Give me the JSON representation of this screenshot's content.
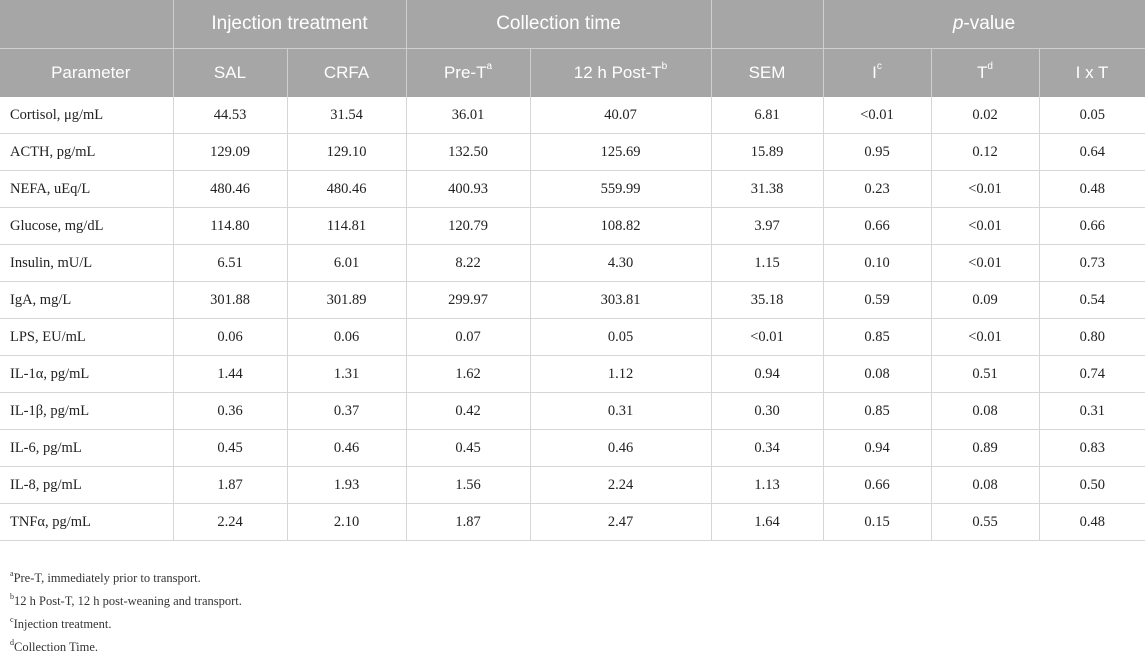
{
  "header": {
    "group_injection": "Injection treatment",
    "group_collection": "Collection time",
    "group_p_italic": "p",
    "group_p_rest": "-value",
    "col_parameter": "Parameter",
    "col_sal": "SAL",
    "col_crfa": "CRFA",
    "col_pre": "Pre-T",
    "col_pre_sup": "a",
    "col_post": "12 h Post-T",
    "col_post_sup": "b",
    "col_sem": "SEM",
    "col_i": "I",
    "col_i_sup": "c",
    "col_t": "T",
    "col_t_sup": "d",
    "col_ixt": "I x T"
  },
  "rows": [
    [
      "Cortisol, μg/mL",
      "44.53",
      "31.54",
      "36.01",
      "40.07",
      "6.81",
      "<0.01",
      "0.02",
      "0.05"
    ],
    [
      "ACTH, pg/mL",
      "129.09",
      "129.10",
      "132.50",
      "125.69",
      "15.89",
      "0.95",
      "0.12",
      "0.64"
    ],
    [
      "NEFA, uEq/L",
      "480.46",
      "480.46",
      "400.93",
      "559.99",
      "31.38",
      "0.23",
      "<0.01",
      "0.48"
    ],
    [
      "Glucose, mg/dL",
      "114.80",
      "114.81",
      "120.79",
      "108.82",
      "3.97",
      "0.66",
      "<0.01",
      "0.66"
    ],
    [
      "Insulin, mU/L",
      "6.51",
      "6.01",
      "8.22",
      "4.30",
      "1.15",
      "0.10",
      "<0.01",
      "0.73"
    ],
    [
      "IgA, mg/L",
      "301.88",
      "301.89",
      "299.97",
      "303.81",
      "35.18",
      "0.59",
      "0.09",
      "0.54"
    ],
    [
      "LPS, EU/mL",
      "0.06",
      "0.06",
      "0.07",
      "0.05",
      "<0.01",
      "0.85",
      "<0.01",
      "0.80"
    ],
    [
      "IL-1α, pg/mL",
      "1.44",
      "1.31",
      "1.62",
      "1.12",
      "0.94",
      "0.08",
      "0.51",
      "0.74"
    ],
    [
      "IL-1β, pg/mL",
      "0.36",
      "0.37",
      "0.42",
      "0.31",
      "0.30",
      "0.85",
      "0.08",
      "0.31"
    ],
    [
      "IL-6, pg/mL",
      "0.45",
      "0.46",
      "0.45",
      "0.46",
      "0.34",
      "0.94",
      "0.89",
      "0.83"
    ],
    [
      "IL-8, pg/mL",
      "1.87",
      "1.93",
      "1.56",
      "2.24",
      "1.13",
      "0.66",
      "0.08",
      "0.50"
    ],
    [
      "TNFα, pg/mL",
      "2.24",
      "2.10",
      "1.87",
      "2.47",
      "1.64",
      "0.15",
      "0.55",
      "0.48"
    ]
  ],
  "footnotes": [
    {
      "mark": "a",
      "text": "Pre-T, immediately prior to transport."
    },
    {
      "mark": "b",
      "text": "12 h Post-T, 12 h post-weaning and transport."
    },
    {
      "mark": "c",
      "text": "Injection treatment."
    },
    {
      "mark": "d",
      "text": "Collection Time."
    }
  ]
}
